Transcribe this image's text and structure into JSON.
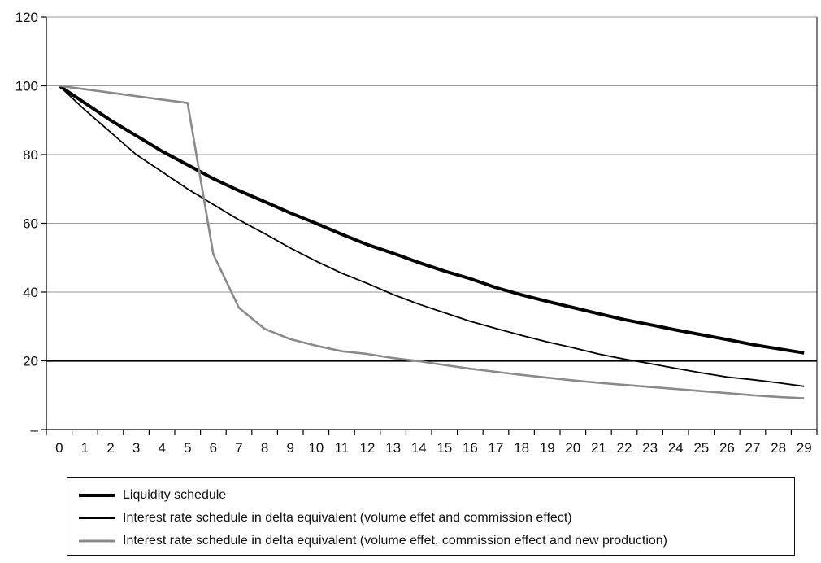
{
  "chart_data": {
    "type": "line",
    "title": "",
    "xlabel": "",
    "ylabel": "",
    "x": [
      0,
      1,
      2,
      3,
      4,
      5,
      6,
      7,
      8,
      9,
      10,
      11,
      12,
      13,
      14,
      15,
      16,
      17,
      18,
      19,
      20,
      21,
      22,
      23,
      24,
      25,
      26,
      27,
      28,
      29
    ],
    "ylim": [
      0,
      120
    ],
    "yticks": [
      0,
      20,
      40,
      60,
      80,
      100,
      120
    ],
    "ytick_labels": [
      "–",
      "20",
      "40",
      "60",
      "80",
      "100",
      "120"
    ],
    "grid": true,
    "reference_line": 20,
    "legend_position": "bottom",
    "series": [
      {
        "name": "Liquidity schedule",
        "color": "#000000",
        "style": "thick",
        "values": [
          100,
          95,
          90,
          85.5,
          81,
          77,
          73,
          69.5,
          66.3,
          63,
          60,
          56.8,
          53.8,
          51.3,
          48.6,
          46.1,
          43.9,
          41.3,
          39.2,
          37.3,
          35.5,
          33.7,
          32,
          30.5,
          29,
          27.6,
          26.2,
          24.7,
          23.5,
          22.3
        ]
      },
      {
        "name": "Interest rate schedule in delta equivalent (volume effet and commission effect)",
        "color": "#000000",
        "style": "thin",
        "values": [
          100,
          93,
          86.5,
          80,
          75,
          70,
          65.5,
          61,
          57,
          52.8,
          49,
          45.5,
          42.5,
          39.3,
          36.5,
          34,
          31.5,
          29.4,
          27.4,
          25.5,
          23.8,
          22,
          20.5,
          19.2,
          17.8,
          16.5,
          15.3,
          14.5,
          13.6,
          12.6
        ]
      },
      {
        "name": "Interest rate schedule in delta equivalent (volume effet, commission effect and new production)",
        "color": "#8a8a8a",
        "style": "medium",
        "values": [
          100,
          99,
          98,
          97,
          96,
          95,
          51,
          35.4,
          29.3,
          26.3,
          24.4,
          22.8,
          22,
          20.8,
          19.9,
          18.8,
          17.7,
          16.8,
          15.9,
          15.1,
          14.3,
          13.6,
          13,
          12.4,
          11.8,
          11.2,
          10.6,
          10,
          9.5,
          9.1
        ]
      }
    ]
  }
}
